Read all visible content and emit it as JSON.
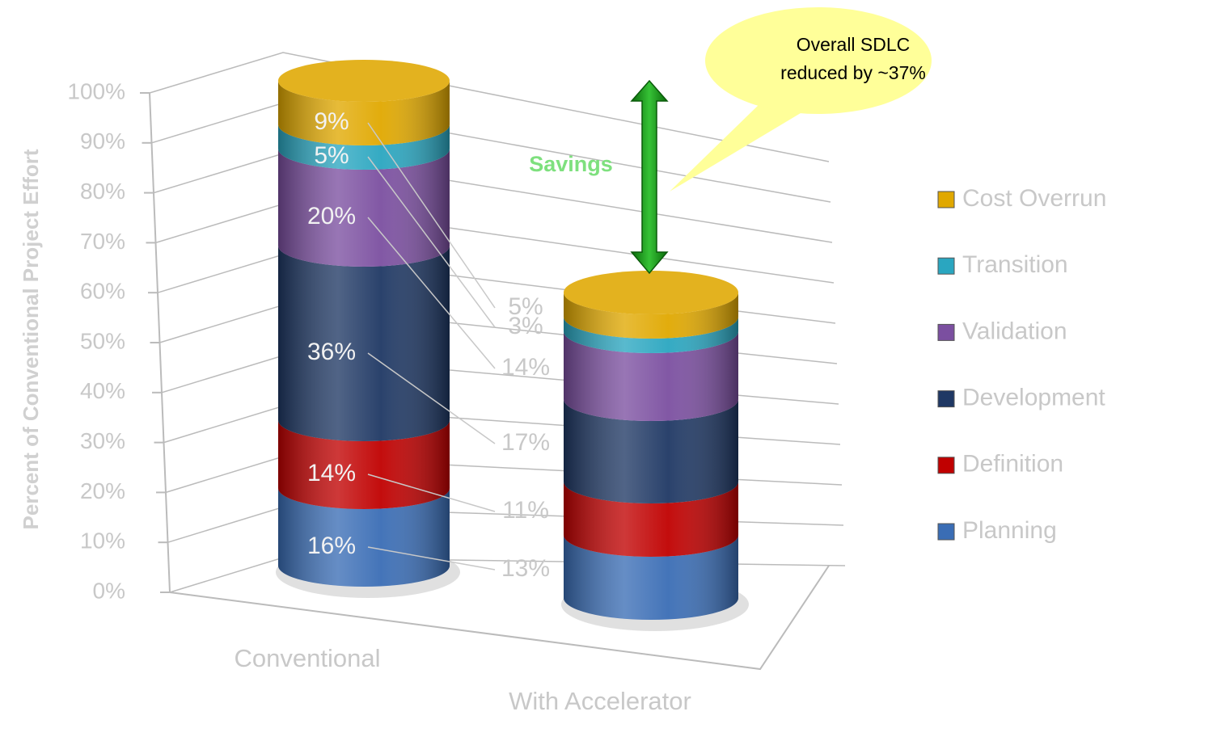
{
  "chart_data": {
    "type": "bar",
    "stacked": true,
    "y_label": "Percent of Conventional Project Effort",
    "categories": [
      "Conventional",
      "With Accelerator"
    ],
    "series": [
      {
        "name": "Planning",
        "color": "#3a6db5",
        "values": [
          16,
          13
        ],
        "value_labels": [
          "16%",
          "13%"
        ]
      },
      {
        "name": "Definition",
        "color": "#c00000",
        "values": [
          14,
          11
        ],
        "value_labels": [
          "14%",
          "11%"
        ]
      },
      {
        "name": "Development",
        "color": "#1f3864",
        "values": [
          36,
          17
        ],
        "value_labels": [
          "36%",
          "17%"
        ]
      },
      {
        "name": "Validation",
        "color": "#7b4fa0",
        "values": [
          20,
          14
        ],
        "value_labels": [
          "20%",
          "14%"
        ]
      },
      {
        "name": "Transition",
        "color": "#2aa6c0",
        "values": [
          5,
          3
        ],
        "value_labels": [
          "5%",
          "3%"
        ]
      },
      {
        "name": "Cost Overrun",
        "color": "#e0a800",
        "values": [
          9,
          5
        ],
        "value_labels": [
          "9%",
          "5%"
        ]
      }
    ],
    "ylim": [
      0,
      100
    ],
    "yticks": [
      {
        "value": 0,
        "label": "0%"
      },
      {
        "value": 10,
        "label": "10%"
      },
      {
        "value": 20,
        "label": "20%"
      },
      {
        "value": 30,
        "label": "30%"
      },
      {
        "value": 40,
        "label": "40%"
      },
      {
        "value": 50,
        "label": "50%"
      },
      {
        "value": 60,
        "label": "60%"
      },
      {
        "value": 70,
        "label": "70%"
      },
      {
        "value": 80,
        "label": "80%"
      },
      {
        "value": 90,
        "label": "90%"
      },
      {
        "value": 100,
        "label": "100%"
      }
    ],
    "grid": true,
    "legend": "right",
    "arrow_label": "Savings",
    "callout": [
      "Overall SDLC",
      "reduced by ~37%"
    ]
  }
}
